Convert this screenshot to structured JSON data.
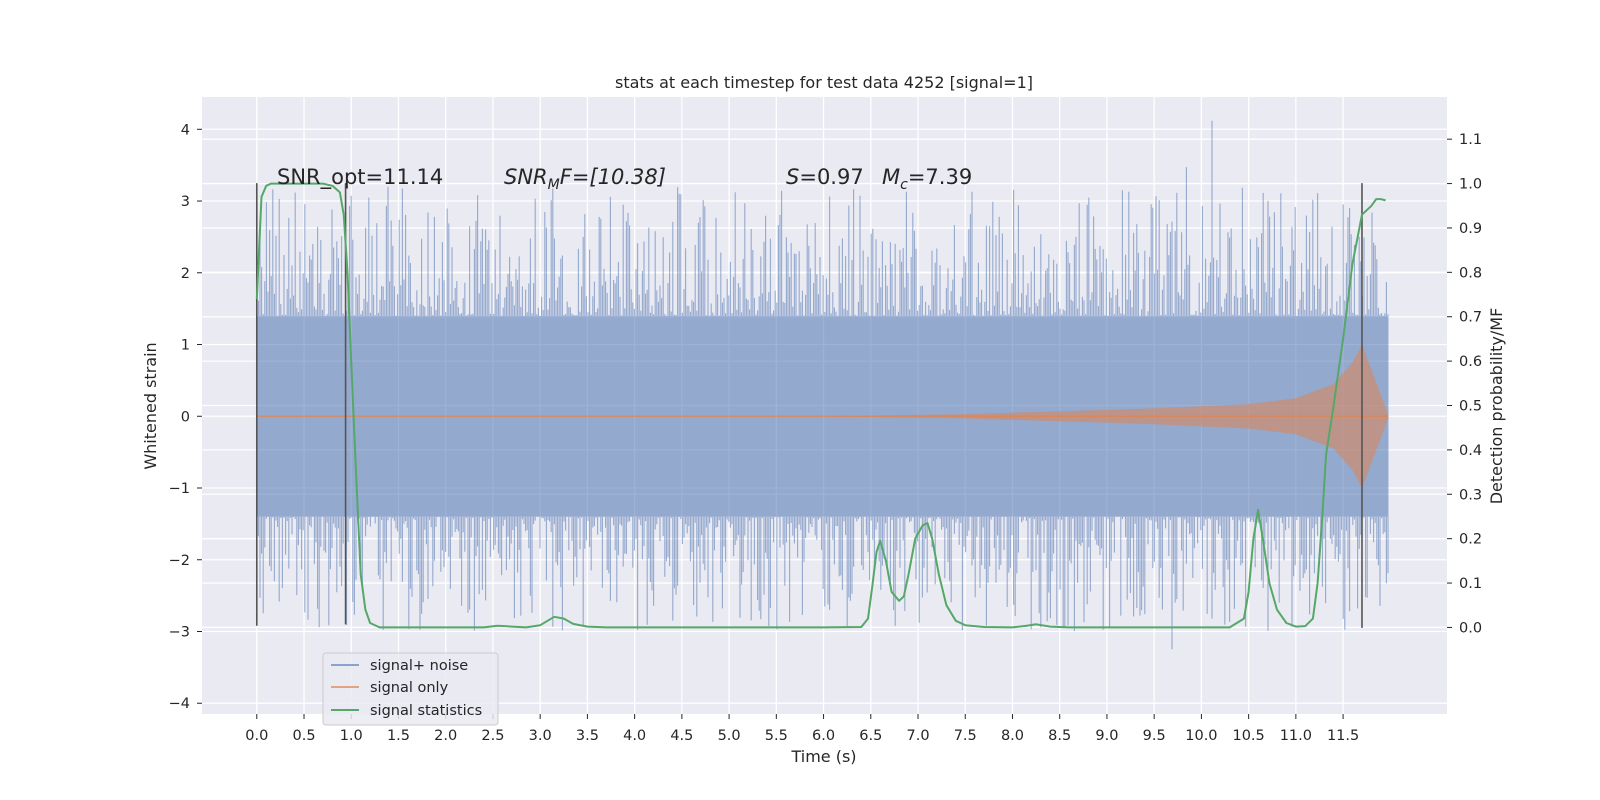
{
  "chart_data": {
    "type": "line",
    "title": "stats at each timestep for test data 4252 [signal=1]",
    "xlabel": "Time (s)",
    "ylabel": "Whitened strain",
    "y2label": "Detection probability/MF",
    "xlim": [
      -0.58,
      12.6
    ],
    "ylim": [
      -4.15,
      4.45
    ],
    "y2lim": [
      -0.195,
      1.195
    ],
    "x_ticks": [
      0.0,
      0.5,
      1.0,
      1.5,
      2.0,
      2.5,
      3.0,
      3.5,
      4.0,
      4.5,
      5.0,
      5.5,
      6.0,
      6.5,
      7.0,
      7.5,
      8.0,
      8.5,
      9.0,
      9.5,
      10.0,
      10.5,
      11.0,
      11.5
    ],
    "x_tick_labels": [
      "0.0",
      "0.5",
      "1.0",
      "1.5",
      "2.0",
      "2.5",
      "3.0",
      "3.5",
      "4.0",
      "4.5",
      "5.0",
      "5.5",
      "6.0",
      "6.5",
      "7.0",
      "7.5",
      "8.0",
      "8.5",
      "9.0",
      "9.5",
      "10.0",
      "10.5",
      "11.0",
      "11.5"
    ],
    "y_ticks": [
      -4,
      -3,
      -2,
      -1,
      0,
      1,
      2,
      3,
      4
    ],
    "y_tick_labels": [
      "−4",
      "−3",
      "−2",
      "−1",
      "0",
      "1",
      "2",
      "3",
      "4"
    ],
    "y2_ticks": [
      0.0,
      0.1,
      0.2,
      0.3,
      0.4,
      0.5,
      0.6,
      0.7,
      0.8,
      0.9,
      1.0,
      1.1
    ],
    "y2_tick_labels": [
      "0.0",
      "0.1",
      "0.2",
      "0.3",
      "0.4",
      "0.5",
      "0.6",
      "0.7",
      "0.8",
      "0.9",
      "1.0",
      "1.1"
    ],
    "grid": true,
    "legend_placement": "lower-left",
    "series": [
      {
        "name": "signal+ noise",
        "color": "#4c72b0",
        "style": "noise-band",
        "x_range": [
          0.0,
          11.98
        ],
        "core_amplitude": 1.4,
        "spike_max": 4.1,
        "spike_min": -3.6
      },
      {
        "name": "signal only",
        "color": "#dd8452",
        "style": "chirp-envelope",
        "x_range": [
          0.0,
          11.98
        ],
        "envelope": {
          "x": [
            0.0,
            6.0,
            7.5,
            8.5,
            9.5,
            10.5,
            11.0,
            11.4,
            11.6,
            11.7,
            11.98
          ],
          "y": [
            0.0,
            0.0,
            0.03,
            0.07,
            0.11,
            0.17,
            0.25,
            0.45,
            0.75,
            1.0,
            0.02
          ]
        }
      },
      {
        "name": "signal statistics",
        "color": "#55a868",
        "axis": "right",
        "x": [
          0.0,
          0.05,
          0.1,
          0.15,
          0.2,
          0.3,
          0.5,
          0.7,
          0.8,
          0.88,
          0.92,
          0.96,
          1.0,
          1.05,
          1.1,
          1.15,
          1.2,
          1.3,
          1.5,
          2.0,
          2.4,
          2.55,
          2.7,
          2.85,
          3.0,
          3.15,
          3.25,
          3.35,
          3.5,
          3.7,
          4.0,
          5.0,
          6.0,
          6.4,
          6.47,
          6.52,
          6.56,
          6.6,
          6.66,
          6.72,
          6.8,
          6.85,
          6.9,
          6.97,
          7.05,
          7.1,
          7.15,
          7.22,
          7.3,
          7.4,
          7.5,
          7.7,
          8.0,
          8.15,
          8.25,
          8.4,
          8.6,
          9.0,
          10.0,
          10.3,
          10.45,
          10.5,
          10.55,
          10.6,
          10.65,
          10.72,
          10.8,
          10.9,
          11.0,
          11.1,
          11.18,
          11.23,
          11.28,
          11.32,
          11.4,
          11.5,
          11.6,
          11.7,
          11.8,
          11.85,
          11.9,
          11.95
        ],
        "y": [
          0.74,
          0.97,
          0.995,
          1.0,
          1.0,
          1.0,
          1.0,
          1.0,
          0.995,
          0.98,
          0.93,
          0.8,
          0.6,
          0.35,
          0.12,
          0.04,
          0.01,
          0.0,
          0.0,
          0.0,
          0.0,
          0.004,
          0.002,
          0.0,
          0.005,
          0.024,
          0.02,
          0.008,
          0.002,
          0.0,
          0.0,
          0.0,
          0.0,
          0.001,
          0.02,
          0.1,
          0.17,
          0.195,
          0.15,
          0.08,
          0.06,
          0.07,
          0.12,
          0.2,
          0.23,
          0.235,
          0.2,
          0.12,
          0.05,
          0.015,
          0.005,
          0.001,
          0.0,
          0.004,
          0.007,
          0.002,
          0.0,
          0.0,
          0.0,
          0.0,
          0.02,
          0.08,
          0.2,
          0.265,
          0.2,
          0.1,
          0.04,
          0.01,
          0.002,
          0.003,
          0.02,
          0.1,
          0.25,
          0.39,
          0.5,
          0.65,
          0.82,
          0.93,
          0.95,
          0.965,
          0.965,
          0.962
        ]
      }
    ],
    "vertical_markers": [
      {
        "x": 0.0,
        "ymin": -2.92,
        "ymax": 3.25
      },
      {
        "x": 0.94,
        "ymin": -2.9,
        "ymax": 3.25
      },
      {
        "x": 11.7,
        "ymin": -2.95,
        "ymax": 3.25
      }
    ],
    "annotations": {
      "snr_opt": "SNR_opt=11.14",
      "snr_mf_label": "SNR",
      "snr_mf_sub": "M",
      "snr_mf_value": "F=[10.38]",
      "s_label": "S",
      "s_value": "=0.97",
      "mc_label": "M",
      "mc_sub": "c",
      "mc_value": "=7.39"
    }
  }
}
